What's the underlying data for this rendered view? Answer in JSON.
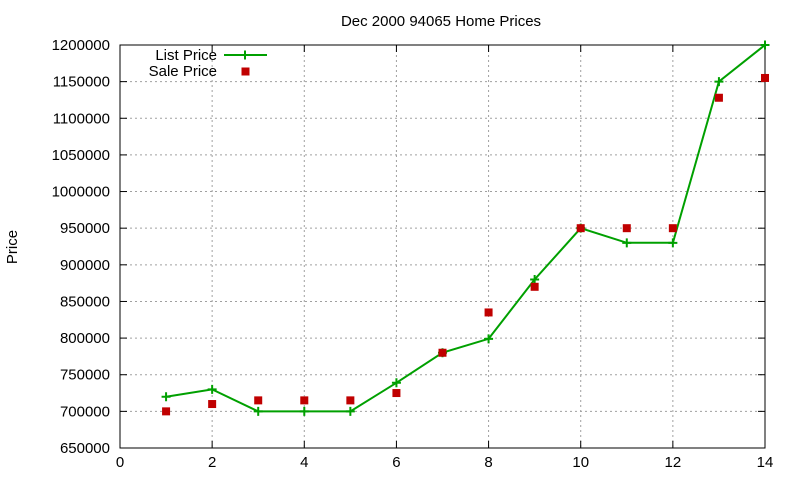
{
  "chart_data": {
    "type": "line",
    "title": "Dec 2000 94065 Home Prices",
    "xlabel": "",
    "ylabel": "Price",
    "xlim": [
      0,
      14
    ],
    "ylim": [
      650000,
      1200000
    ],
    "xticks": [
      0,
      2,
      4,
      6,
      8,
      10,
      12,
      14
    ],
    "yticks": [
      650000,
      700000,
      750000,
      800000,
      850000,
      900000,
      950000,
      1000000,
      1050000,
      1100000,
      1150000,
      1200000
    ],
    "grid": true,
    "legend_position": "top-left",
    "series": [
      {
        "name": "List Price",
        "style": "line+cross",
        "color": "#00a000",
        "points": [
          [
            1,
            720000
          ],
          [
            2,
            730000
          ],
          [
            3,
            700000
          ],
          [
            4,
            700000
          ],
          [
            5,
            700000
          ],
          [
            6,
            739000
          ],
          [
            7,
            780000
          ],
          [
            8,
            799000
          ],
          [
            9,
            880000
          ],
          [
            10,
            950000
          ],
          [
            11,
            930000
          ],
          [
            12,
            930000
          ],
          [
            13,
            1150000
          ],
          [
            14,
            1200000
          ]
        ]
      },
      {
        "name": "Sale Price",
        "style": "square",
        "color": "#c00000",
        "points": [
          [
            1,
            700000
          ],
          [
            2,
            710000
          ],
          [
            3,
            715000
          ],
          [
            4,
            715000
          ],
          [
            5,
            715000
          ],
          [
            6,
            725000
          ],
          [
            7,
            780000
          ],
          [
            8,
            835000
          ],
          [
            9,
            870000
          ],
          [
            10,
            950000
          ],
          [
            11,
            950000
          ],
          [
            12,
            950000
          ],
          [
            13,
            1128000
          ],
          [
            14,
            1155000
          ]
        ]
      }
    ]
  }
}
